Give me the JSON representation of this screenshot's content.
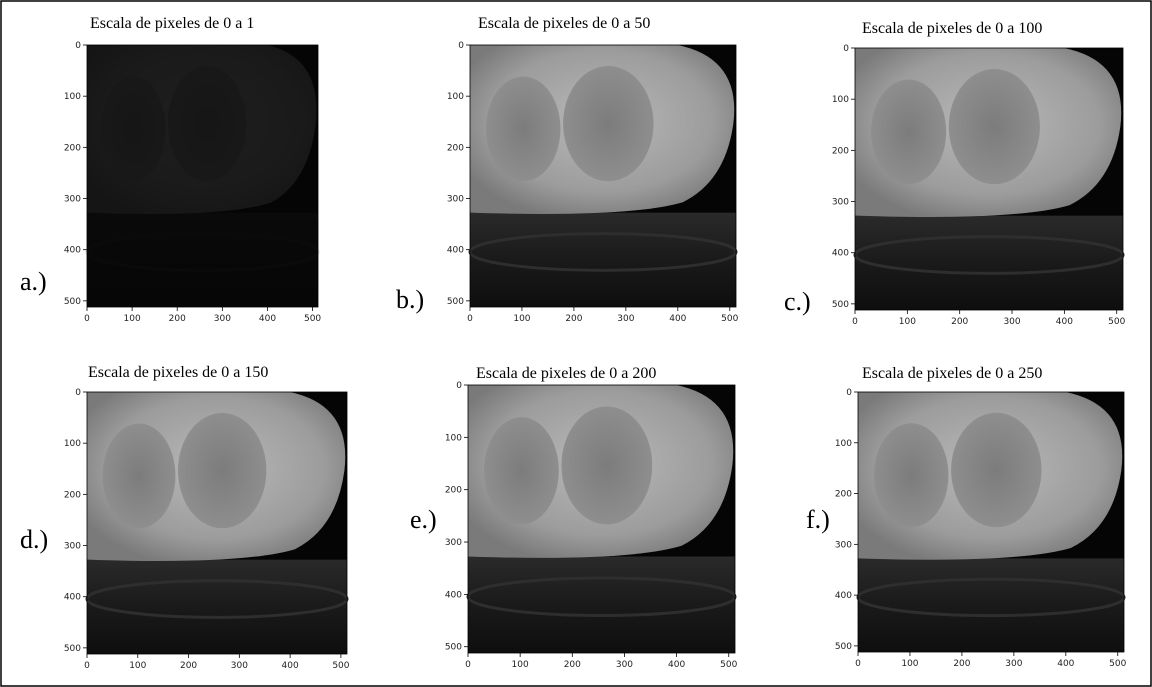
{
  "panels": [
    {
      "label": "a.)",
      "title": "Escala de pixeles de 0 a 1",
      "xticks": [
        0,
        100,
        200,
        300,
        400,
        500
      ],
      "yticks": [
        0,
        100,
        200,
        300,
        400,
        500
      ]
    },
    {
      "label": "b.)",
      "title": "Escala de pixeles de 0 a 50",
      "xticks": [
        0,
        100,
        200,
        300,
        400,
        500
      ],
      "yticks": [
        0,
        100,
        200,
        300,
        400,
        500
      ]
    },
    {
      "label": "c.)",
      "title": "Escala de pixeles de 0 a 100",
      "xticks": [
        0,
        100,
        200,
        300,
        400,
        500
      ],
      "yticks": [
        0,
        100,
        200,
        300,
        400,
        500
      ]
    },
    {
      "label": "d.)",
      "title": "Escala de pixeles de 0 a 150",
      "xticks": [
        0,
        100,
        200,
        300,
        400,
        500
      ],
      "yticks": [
        0,
        100,
        200,
        300,
        400,
        500
      ]
    },
    {
      "label": "e.)",
      "title": "Escala de pixeles de 0 a 200",
      "xticks": [
        0,
        100,
        200,
        300,
        400,
        500
      ],
      "yticks": [
        0,
        100,
        200,
        300,
        400,
        500
      ]
    },
    {
      "label": "f.)",
      "title": "Escala de pixeles de 0 a 250",
      "xticks": [
        0,
        100,
        200,
        300,
        400,
        500
      ],
      "yticks": [
        0,
        100,
        200,
        300,
        400,
        500
      ]
    }
  ]
}
